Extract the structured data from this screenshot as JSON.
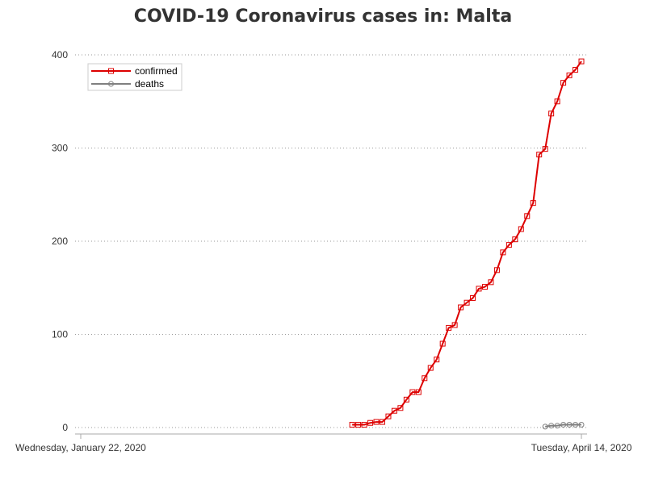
{
  "chart_data": {
    "type": "line",
    "title": "COVID-19 Coronavirus cases in: Malta",
    "xlabel": "",
    "ylabel": "",
    "x_start": "2020-01-22",
    "x_end": "2020-04-14",
    "x_tick_labels": [
      "Wednesday, January 22, 2020",
      "Tuesday, April 14, 2020"
    ],
    "ylim": [
      0,
      400
    ],
    "y_ticks": [
      0,
      100,
      200,
      300,
      400
    ],
    "grid": "horizontal dotted",
    "legend_position": "top-left",
    "series": [
      {
        "name": "confirmed",
        "color": "#dd0000",
        "marker": "square",
        "x": [
          "2020-03-07",
          "2020-03-08",
          "2020-03-09",
          "2020-03-10",
          "2020-03-11",
          "2020-03-12",
          "2020-03-13",
          "2020-03-14",
          "2020-03-15",
          "2020-03-16",
          "2020-03-17",
          "2020-03-18",
          "2020-03-19",
          "2020-03-20",
          "2020-03-21",
          "2020-03-22",
          "2020-03-23",
          "2020-03-24",
          "2020-03-25",
          "2020-03-26",
          "2020-03-27",
          "2020-03-28",
          "2020-03-29",
          "2020-03-30",
          "2020-03-31",
          "2020-04-01",
          "2020-04-02",
          "2020-04-03",
          "2020-04-04",
          "2020-04-05",
          "2020-04-06",
          "2020-04-07",
          "2020-04-08",
          "2020-04-09",
          "2020-04-10",
          "2020-04-11",
          "2020-04-12",
          "2020-04-13",
          "2020-04-14"
        ],
        "values": [
          3,
          3,
          3,
          5,
          6,
          6,
          12,
          18,
          21,
          30,
          38,
          38,
          53,
          64,
          73,
          90,
          107,
          110,
          129,
          134,
          139,
          149,
          151,
          156,
          169,
          188,
          196,
          202,
          213,
          227,
          241,
          293,
          299,
          337,
          350,
          370,
          378,
          384,
          393
        ]
      },
      {
        "name": "deaths",
        "color": "#808080",
        "marker": "circle",
        "x": [
          "2020-04-08",
          "2020-04-09",
          "2020-04-10",
          "2020-04-11",
          "2020-04-12",
          "2020-04-13",
          "2020-04-14"
        ],
        "values": [
          1,
          2,
          2,
          3,
          3,
          3,
          3
        ]
      }
    ]
  }
}
